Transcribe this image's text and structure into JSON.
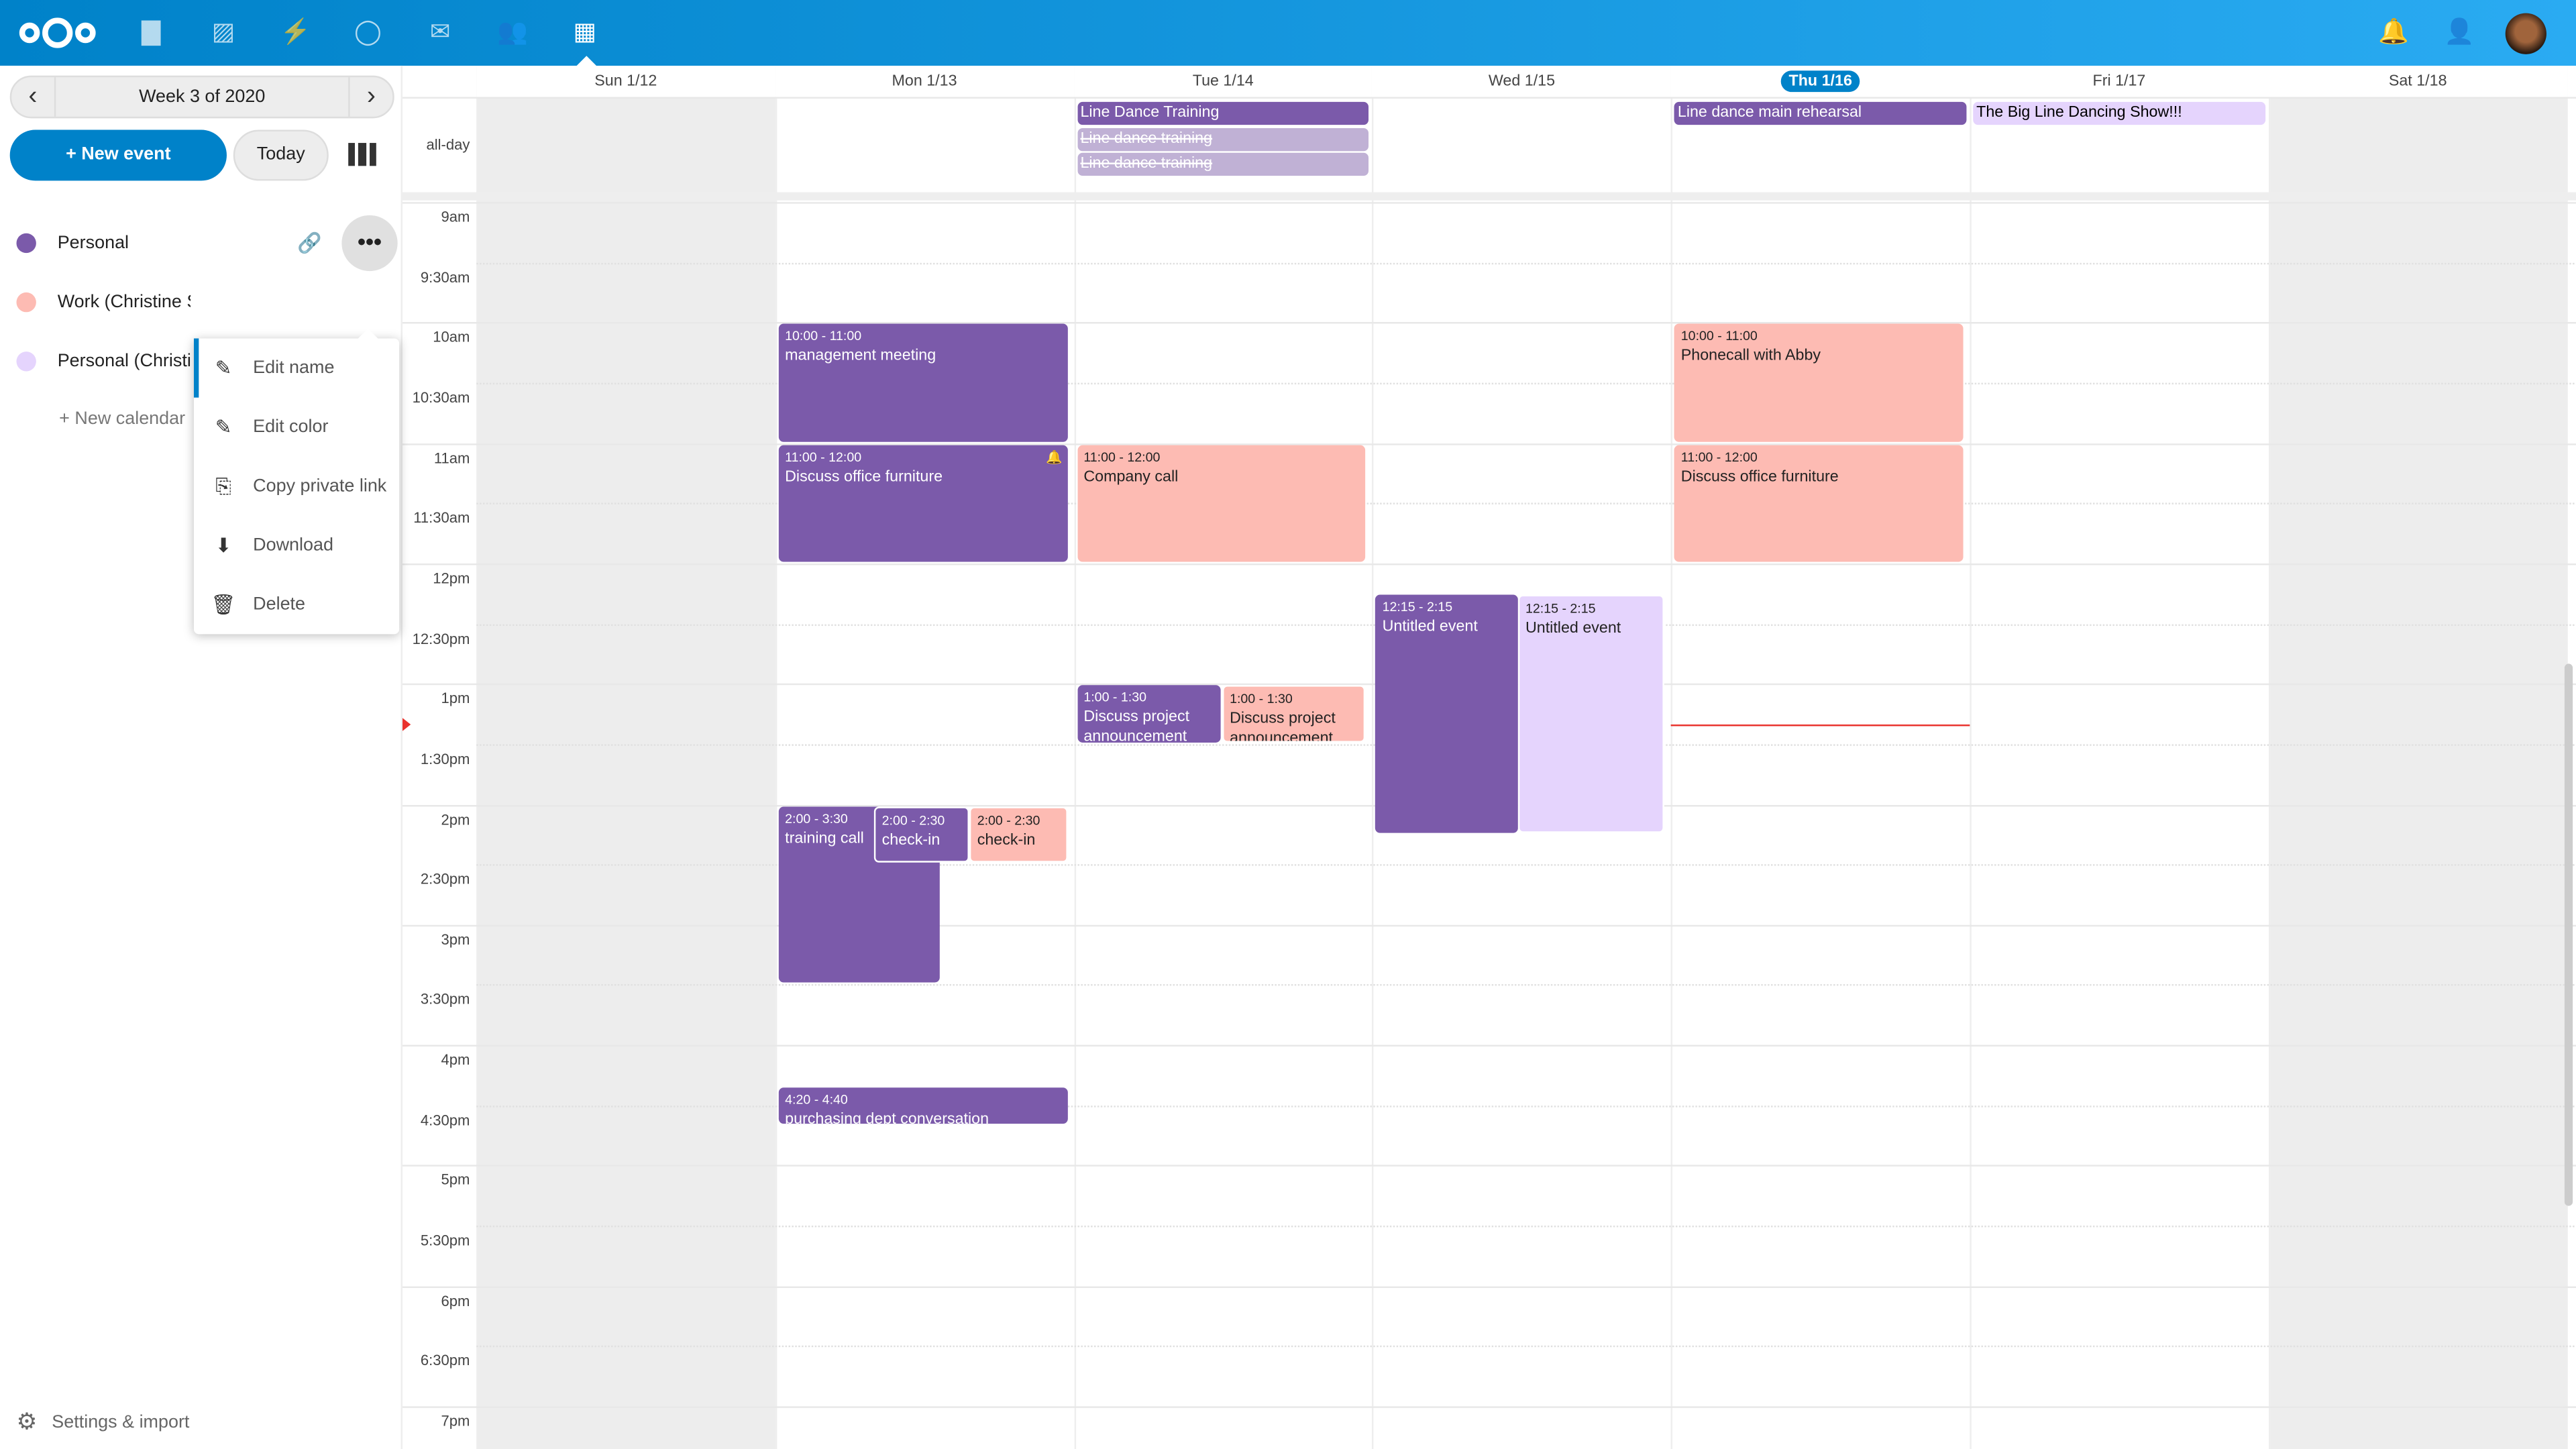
{
  "colors": {
    "header": "#0082c9",
    "primary": "#0082c9",
    "purple": "#7b5aaa",
    "purple_light": "#c0b1d5",
    "pink": "#fdbbb3",
    "lavender": "#e5d4fd",
    "now": "#e9322d"
  },
  "header": {
    "apps": [
      {
        "icon": "files-icon",
        "glyph": "▇"
      },
      {
        "icon": "photos-icon",
        "glyph": "▨"
      },
      {
        "icon": "activity-icon",
        "glyph": "⚡"
      },
      {
        "icon": "talk-icon",
        "glyph": "◯"
      },
      {
        "icon": "mail-icon",
        "glyph": "✉"
      },
      {
        "icon": "contacts-icon",
        "glyph": "👥"
      },
      {
        "icon": "calendar-icon",
        "glyph": "▦"
      }
    ],
    "notifications_icon": "bell-icon",
    "contacts_menu_icon": "person-icon"
  },
  "sidebar": {
    "week_label": "Week 3 of 2020",
    "new_event": "+ New event",
    "today": "Today",
    "calendars": [
      {
        "name": "Personal",
        "color": "#7b5aaa"
      },
      {
        "name": "Work (Christine S",
        "color": "#fdbbb3"
      },
      {
        "name": "Personal (Christi",
        "color": "#e5d4fd"
      }
    ],
    "new_calendar": "+ New calendar",
    "menu": [
      {
        "label": "Edit name",
        "glyph": "✎"
      },
      {
        "label": "Edit color",
        "glyph": "✎"
      },
      {
        "label": "Copy private link",
        "glyph": "⎘"
      },
      {
        "label": "Download",
        "glyph": "⬇"
      },
      {
        "label": "Delete",
        "glyph": "🗑"
      }
    ],
    "settings": "Settings & import"
  },
  "calendar": {
    "days": [
      "Sun 1/12",
      "Mon 1/13",
      "Tue 1/14",
      "Wed 1/15",
      "Thu 1/16",
      "Fri 1/17",
      "Sat 1/18"
    ],
    "today_index": 4,
    "allday_label": "all-day",
    "hours": [
      "9am",
      "9:30am",
      "10am",
      "10:30am",
      "11am",
      "11:30am",
      "12pm",
      "12:30pm",
      "1pm",
      "1:30pm",
      "2pm",
      "2:30pm",
      "3pm",
      "3:30pm",
      "4pm",
      "4:30pm",
      "5pm",
      "5:30pm",
      "6pm",
      "6:30pm",
      "7pm"
    ],
    "now": "1:20pm",
    "allday_events": [
      {
        "day": 2,
        "title": "Line Dance Training",
        "color": "#7b5aaa",
        "cancelled": false
      },
      {
        "day": 2,
        "title": "Line dance training",
        "color": "#c0b1d5",
        "cancelled": true
      },
      {
        "day": 2,
        "title": "Line dance training",
        "color": "#c0b1d5",
        "cancelled": true
      },
      {
        "day": 4,
        "title": "Line dance main rehearsal",
        "color": "#7b5aaa",
        "cancelled": false
      },
      {
        "day": 5,
        "title": "The Big Line Dancing Show!!!",
        "color": "#e5d4fd",
        "cancelled": false
      }
    ],
    "events": [
      {
        "day": 1,
        "time": "10:00 - 11:00",
        "title": "management meeting",
        "start": 10,
        "end": 11,
        "color": "#7b5aaa"
      },
      {
        "day": 1,
        "time": "11:00 - 12:00",
        "title": "Discuss office furniture",
        "start": 11,
        "end": 12,
        "color": "#7b5aaa",
        "alarm": true
      },
      {
        "day": 1,
        "time": "2:00 - 3:30",
        "title": "training call",
        "start": 14,
        "end": 15.5,
        "color": "#7b5aaa"
      },
      {
        "day": 1,
        "time": "2:00 - 2:30",
        "title": "check-in",
        "start": 14,
        "end": 14.5,
        "color": "#7b5aaa"
      },
      {
        "day": 1,
        "time": "2:00 - 2:30",
        "title": "check-in",
        "start": 14,
        "end": 14.5,
        "color": "#fdbbb3"
      },
      {
        "day": 1,
        "time": "4:20 - 4:40",
        "title": "purchasing dept conversation",
        "start": 16.333,
        "end": 16.667,
        "color": "#7b5aaa"
      },
      {
        "day": 2,
        "time": "11:00 - 12:00",
        "title": "Company call",
        "start": 11,
        "end": 12,
        "color": "#fdbbb3"
      },
      {
        "day": 2,
        "time": "1:00 - 1:30",
        "title": "Discuss project announcement",
        "start": 13,
        "end": 13.5,
        "color": "#7b5aaa"
      },
      {
        "day": 2,
        "time": "1:00 - 1:30",
        "title": "Discuss project announcement",
        "start": 13,
        "end": 13.5,
        "color": "#fdbbb3"
      },
      {
        "day": 3,
        "time": "12:15 - 2:15",
        "title": "Untitled event",
        "start": 12.25,
        "end": 14.25,
        "color": "#7b5aaa"
      },
      {
        "day": 3,
        "time": "12:15 - 2:15",
        "title": "Untitled event",
        "start": 12.25,
        "end": 14.25,
        "color": "#e5d4fd"
      },
      {
        "day": 4,
        "time": "10:00 - 11:00",
        "title": "Phonecall with Abby",
        "start": 10,
        "end": 11,
        "color": "#fdbbb3"
      },
      {
        "day": 4,
        "time": "11:00 - 12:00",
        "title": "Discuss office furniture",
        "start": 11,
        "end": 12,
        "color": "#fdbbb3"
      }
    ]
  }
}
